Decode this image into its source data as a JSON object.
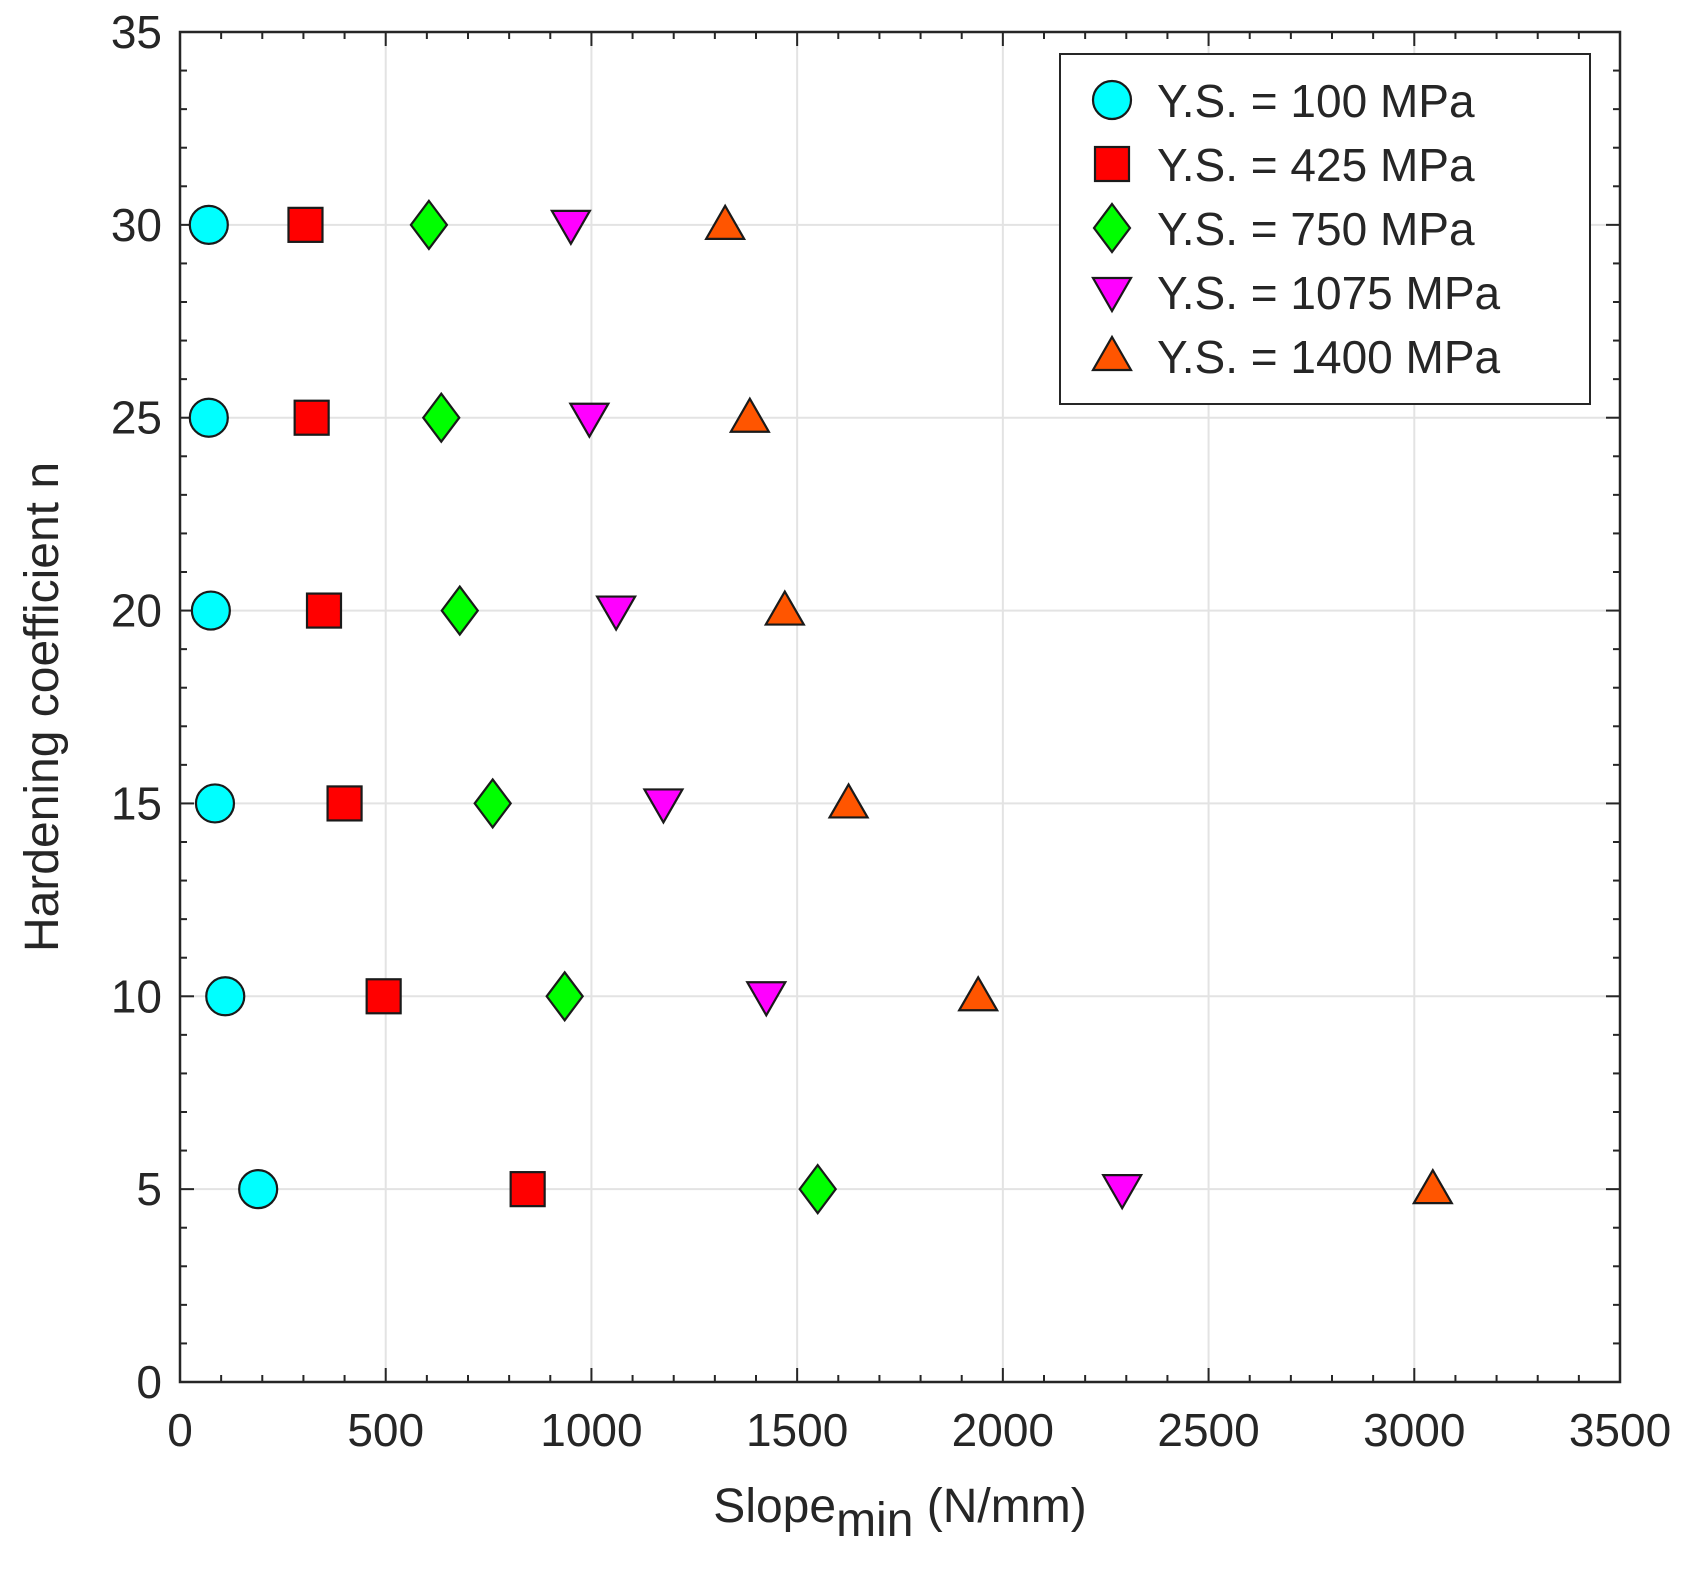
{
  "chart_data": {
    "type": "scatter",
    "title": "",
    "xlabel": {
      "main": "Slope",
      "subscript": "min",
      "suffix": " (N/mm)"
    },
    "ylabel": "Hardening coefficient n",
    "xlim": [
      0,
      3500
    ],
    "ylim": [
      0,
      35
    ],
    "xticks": [
      0,
      500,
      1000,
      1500,
      2000,
      2500,
      3000,
      3500
    ],
    "yticks": [
      0,
      5,
      10,
      15,
      20,
      25,
      30,
      35
    ],
    "xtick_labels": [
      "0",
      "500",
      "1000",
      "1500",
      "2000",
      "2500",
      "3000",
      "3500"
    ],
    "ytick_labels": [
      "0",
      "5",
      "10",
      "15",
      "20",
      "25",
      "30",
      "35"
    ],
    "grid": true,
    "legend_position": "top-right",
    "series": [
      {
        "name": "Y.S. = 100 MPa",
        "marker": "circle",
        "color": "#00ffff",
        "points": [
          [
            70,
            30
          ],
          [
            70,
            25
          ],
          [
            75,
            20
          ],
          [
            85,
            15
          ],
          [
            110,
            10
          ],
          [
            190,
            5
          ]
        ]
      },
      {
        "name": "Y.S. = 425 MPa",
        "marker": "square",
        "color": "#ff0000",
        "points": [
          [
            305,
            30
          ],
          [
            320,
            25
          ],
          [
            350,
            20
          ],
          [
            400,
            15
          ],
          [
            495,
            10
          ],
          [
            845,
            5
          ]
        ]
      },
      {
        "name": "Y.S. = 750 MPa",
        "marker": "diamond",
        "color": "#00ff00",
        "points": [
          [
            605,
            30
          ],
          [
            635,
            25
          ],
          [
            680,
            20
          ],
          [
            760,
            15
          ],
          [
            935,
            10
          ],
          [
            1550,
            5
          ]
        ]
      },
      {
        "name": "Y.S. = 1075 MPa",
        "marker": "triangle-down",
        "color": "#ff00ff",
        "points": [
          [
            950,
            30
          ],
          [
            995,
            25
          ],
          [
            1060,
            20
          ],
          [
            1175,
            15
          ],
          [
            1425,
            10
          ],
          [
            2290,
            5
          ]
        ]
      },
      {
        "name": "Y.S. = 1400 MPa",
        "marker": "triangle-up",
        "color": "#ff5500",
        "points": [
          [
            1325,
            30
          ],
          [
            1385,
            25
          ],
          [
            1470,
            20
          ],
          [
            1625,
            15
          ],
          [
            1940,
            10
          ],
          [
            3045,
            5
          ]
        ]
      }
    ]
  }
}
